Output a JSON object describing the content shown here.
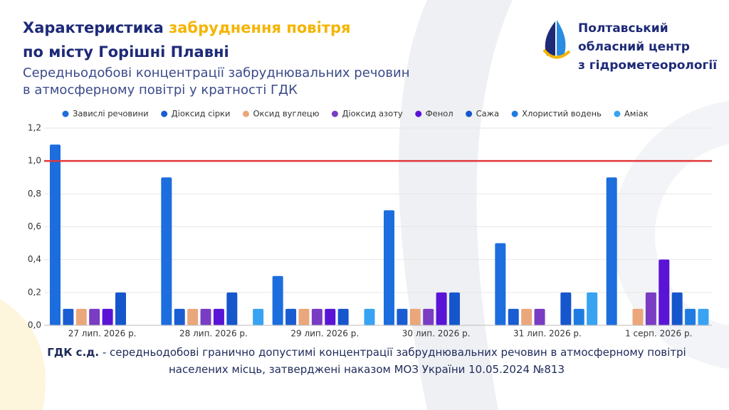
{
  "chart_data": {
    "type": "bar",
    "title_parts": [
      "Характеристика",
      "забруднення повітря",
      "по місту Горішні Плавні"
    ],
    "subtitle_lines": [
      "Середньодобові концентрації забруднювальних речовин",
      "в атмосферному повітрі у кратності ГДК"
    ],
    "logo_lines": [
      "Полтавський",
      "обласний центр",
      "з гідрометеорології"
    ],
    "categories": [
      "27 лип. 2026 р.",
      "28 лип. 2026 р.",
      "29 лип. 2026 р.",
      "30 лип. 2026 р.",
      "31 лип. 2026 р.",
      "1 серп. 2026 р."
    ],
    "series": [
      {
        "name": "Завислі речовини",
        "color": "#1c6dde",
        "values": [
          1.1,
          0.9,
          0.3,
          0.7,
          0.5,
          0.9
        ]
      },
      {
        "name": "Діоксид сірки",
        "color": "#1a5cd2",
        "values": [
          0.1,
          0.1,
          0.1,
          0.1,
          0.1,
          null
        ]
      },
      {
        "name": "Оксид вуглецю",
        "color": "#eaa77b",
        "values": [
          0.1,
          0.1,
          0.1,
          0.1,
          0.1,
          0.1
        ]
      },
      {
        "name": "Діоксид азоту",
        "color": "#7a3cc2",
        "values": [
          0.1,
          0.1,
          0.1,
          0.1,
          0.1,
          0.2
        ]
      },
      {
        "name": "Фенол",
        "color": "#5a14d6",
        "values": [
          0.1,
          0.1,
          0.1,
          0.2,
          null,
          0.4
        ]
      },
      {
        "name": "Сажа",
        "color": "#1656cc",
        "values": [
          0.2,
          0.2,
          0.1,
          0.2,
          0.2,
          0.2
        ]
      },
      {
        "name": "Хлористий водень",
        "color": "#1f7be2",
        "values": [
          null,
          null,
          null,
          null,
          0.1,
          0.1
        ]
      },
      {
        "name": "Аміак",
        "color": "#38a3f2",
        "values": [
          null,
          0.1,
          0.1,
          null,
          0.2,
          0.1
        ]
      }
    ],
    "ylim": [
      0,
      1.2
    ],
    "yticks": [
      {
        "value": 0,
        "label": "0,0"
      },
      {
        "value": 0.2,
        "label": "0,2"
      },
      {
        "value": 0.4,
        "label": "0,4"
      },
      {
        "value": 0.6,
        "label": "0,6"
      },
      {
        "value": 0.8,
        "label": "0,8"
      },
      {
        "value": 1,
        "label": "1,0"
      },
      {
        "value": 1.2,
        "label": "1,2"
      }
    ],
    "threshold": 1,
    "threshold_color": "#e0383b",
    "footnote": {
      "term": "ГДК с.д.",
      "text": "- середньодобові гранично допустимі концентрації забруднювальних речовин в атмосферному повітрі населених місць, затверджені наказом МОЗ України 10.05.2024 №813"
    }
  }
}
